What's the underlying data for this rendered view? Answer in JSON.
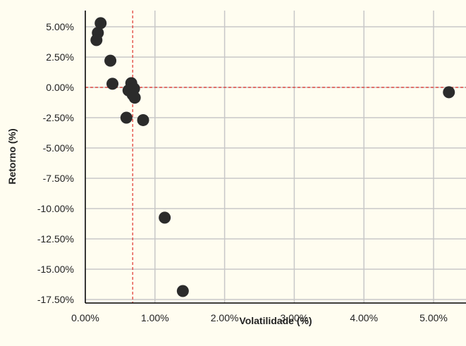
{
  "chart_data": {
    "type": "scatter",
    "xlabel": "Volatilidade (%)",
    "ylabel": "Retorno (%)",
    "xlim": [
      0,
      0.055
    ],
    "ylim": [
      -0.18,
      0.065
    ],
    "x_ticks": [
      "0.00%",
      "1.00%",
      "2.00%",
      "3.00%",
      "4.00%",
      "5.00%"
    ],
    "y_ticks": [
      "5.00%",
      "2.50%",
      "0.00%",
      "-2.50%",
      "-5.00%",
      "-7.50%",
      "-10.00%",
      "-12.50%",
      "-15.00%",
      "-17.50%"
    ],
    "grid": true,
    "reference_lines": {
      "x": 0.0068,
      "y": 0.0,
      "color": "#e0302a",
      "style": "dashed"
    },
    "marker_color": "#2b2b2b",
    "background_color": "#fffdf0",
    "points": [
      {
        "x": 0.0022,
        "y": 0.053
      },
      {
        "x": 0.0018,
        "y": 0.045
      },
      {
        "x": 0.0016,
        "y": 0.039
      },
      {
        "x": 0.0036,
        "y": 0.022
      },
      {
        "x": 0.0039,
        "y": 0.003
      },
      {
        "x": 0.0066,
        "y": 0.0035
      },
      {
        "x": 0.007,
        "y": -0.001
      },
      {
        "x": 0.0062,
        "y": -0.0025
      },
      {
        "x": 0.0068,
        "y": -0.006
      },
      {
        "x": 0.0071,
        "y": -0.0085
      },
      {
        "x": 0.0059,
        "y": -0.025
      },
      {
        "x": 0.0083,
        "y": -0.027
      },
      {
        "x": 0.0114,
        "y": -0.1075
      },
      {
        "x": 0.014,
        "y": -0.168
      },
      {
        "x": 0.0522,
        "y": -0.004
      }
    ]
  }
}
